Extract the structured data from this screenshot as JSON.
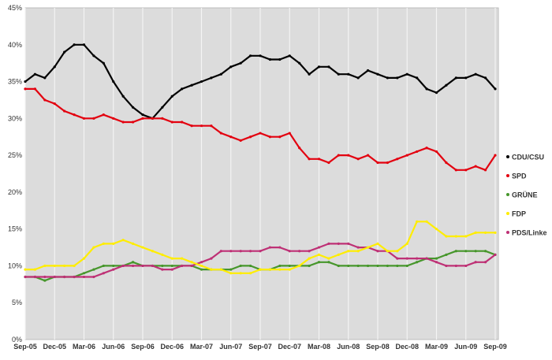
{
  "chart_data": {
    "type": "line",
    "title": "",
    "xlabel": "",
    "ylabel": "",
    "ylim": [
      0,
      45
    ],
    "y_ticks": [
      "0%",
      "5%",
      "10%",
      "15%",
      "20%",
      "25%",
      "30%",
      "35%",
      "40%",
      "45%"
    ],
    "x_ticks": [
      "Sep-05",
      "Dec-05",
      "Mar-06",
      "Jun-06",
      "Sep-06",
      "Dec-06",
      "Mar-07",
      "Jun-07",
      "Sep-07",
      "Dec-07",
      "Mar-08",
      "Jun-08",
      "Sep-08",
      "Dec-08",
      "Mar-09",
      "Jun-09",
      "Sep-09"
    ],
    "x_start": "Sep-05",
    "x_step": "month",
    "grid": "vertical",
    "legend_position": "right",
    "background": "#dcdcdc",
    "series": [
      {
        "name": "CDU/CSU",
        "color": "#000000",
        "values": [
          35,
          36,
          35.5,
          37,
          39,
          40,
          40,
          38.5,
          37.5,
          35,
          33,
          31.5,
          30.5,
          30,
          31.5,
          33,
          34,
          34.5,
          35,
          35.5,
          36,
          37,
          37.5,
          38.5,
          38.5,
          38,
          38,
          38.5,
          37.5,
          36,
          37,
          37,
          36,
          36,
          35.5,
          36.5,
          36,
          35.5,
          35.5,
          36,
          35.5,
          34,
          33.5,
          34.5,
          35.5,
          35.5,
          36,
          35.5,
          34
        ]
      },
      {
        "name": "SPD",
        "color": "#e3000f",
        "values": [
          34,
          34,
          32.5,
          32,
          31,
          30.5,
          30,
          30,
          30.5,
          30,
          29.5,
          29.5,
          30,
          30,
          30,
          29.5,
          29.5,
          29,
          29,
          29,
          28,
          27.5,
          27,
          27.5,
          28,
          27.5,
          27.5,
          28,
          26,
          24.5,
          24.5,
          24,
          25,
          25,
          24.5,
          25,
          24,
          24,
          24.5,
          25,
          25.5,
          26,
          25.5,
          24,
          23,
          23,
          23.5,
          23,
          25
        ]
      },
      {
        "name": "GRÜNE",
        "color": "#46962b",
        "values": [
          8.5,
          8.5,
          8,
          8.5,
          8.5,
          8.5,
          9,
          9.5,
          10,
          10,
          10,
          10.5,
          10,
          10,
          10,
          10,
          10,
          10,
          9.5,
          9.5,
          9.5,
          9.5,
          10,
          10,
          9.5,
          9.5,
          10,
          10,
          10,
          10,
          10.5,
          10.5,
          10,
          10,
          10,
          10,
          10,
          10,
          10,
          10,
          10.5,
          11,
          11,
          11.5,
          12,
          12,
          12,
          12,
          11.5
        ]
      },
      {
        "name": "FDP",
        "color": "#ffed00",
        "values": [
          9.5,
          9.5,
          10,
          10,
          10,
          10,
          11,
          12.5,
          13,
          13,
          13.5,
          13,
          12.5,
          12,
          11.5,
          11,
          11,
          10.5,
          10,
          9.5,
          9.5,
          9,
          9,
          9,
          9.5,
          9.5,
          9.5,
          9.5,
          10,
          11,
          11.5,
          11,
          11.5,
          12,
          12,
          12.5,
          13,
          12,
          12,
          13,
          16,
          16,
          15,
          14,
          14,
          14,
          14.5,
          14.5,
          14.5
        ]
      },
      {
        "name": "PDS/Linke",
        "color": "#be3075",
        "values": [
          8.5,
          8.5,
          8.5,
          8.5,
          8.5,
          8.5,
          8.5,
          8.5,
          9,
          9.5,
          10,
          10,
          10,
          10,
          9.5,
          9.5,
          10,
          10,
          10.5,
          11,
          12,
          12,
          12,
          12,
          12,
          12.5,
          12.5,
          12,
          12,
          12,
          12.5,
          13,
          13,
          13,
          12.5,
          12.5,
          12,
          12,
          11,
          11,
          11,
          11,
          10.5,
          10,
          10,
          10,
          10.5,
          10.5,
          11.5
        ]
      }
    ]
  }
}
